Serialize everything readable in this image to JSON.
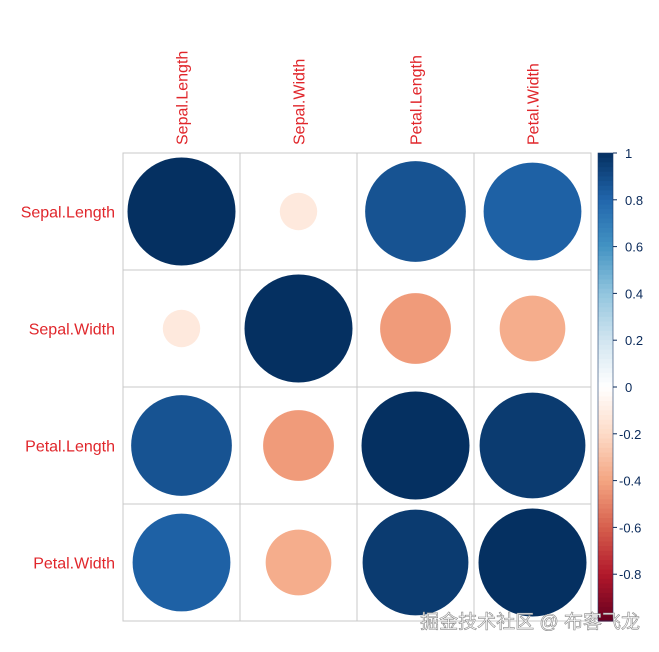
{
  "chart_data": {
    "type": "heatmap",
    "variables": [
      "Sepal.Length",
      "Sepal.Width",
      "Petal.Length",
      "Petal.Width"
    ],
    "matrix": [
      [
        1,
        -0.12,
        0.87,
        0.82
      ],
      [
        -0.12,
        1,
        -0.43,
        -0.37
      ],
      [
        0.87,
        -0.43,
        1,
        0.96
      ],
      [
        0.82,
        -0.37,
        0.96,
        1
      ]
    ],
    "colorbar": {
      "range": [
        -1,
        1
      ],
      "ticks": [
        "1",
        "0.8",
        "0.6",
        "0.4",
        "0.2",
        "0",
        "-0.2",
        "-0.4",
        "-0.6",
        "-0.8"
      ],
      "palette": [
        "#67001F",
        "#B2182B",
        "#D6604D",
        "#F4A582",
        "#FDDBC7",
        "#FFFFFF",
        "#D1E5F0",
        "#92C5DE",
        "#4393C3",
        "#2166AC",
        "#053061"
      ]
    },
    "label_color": "#E0262B",
    "grid": true
  },
  "watermark": "掘金技术社区 @ 布客飞龙"
}
